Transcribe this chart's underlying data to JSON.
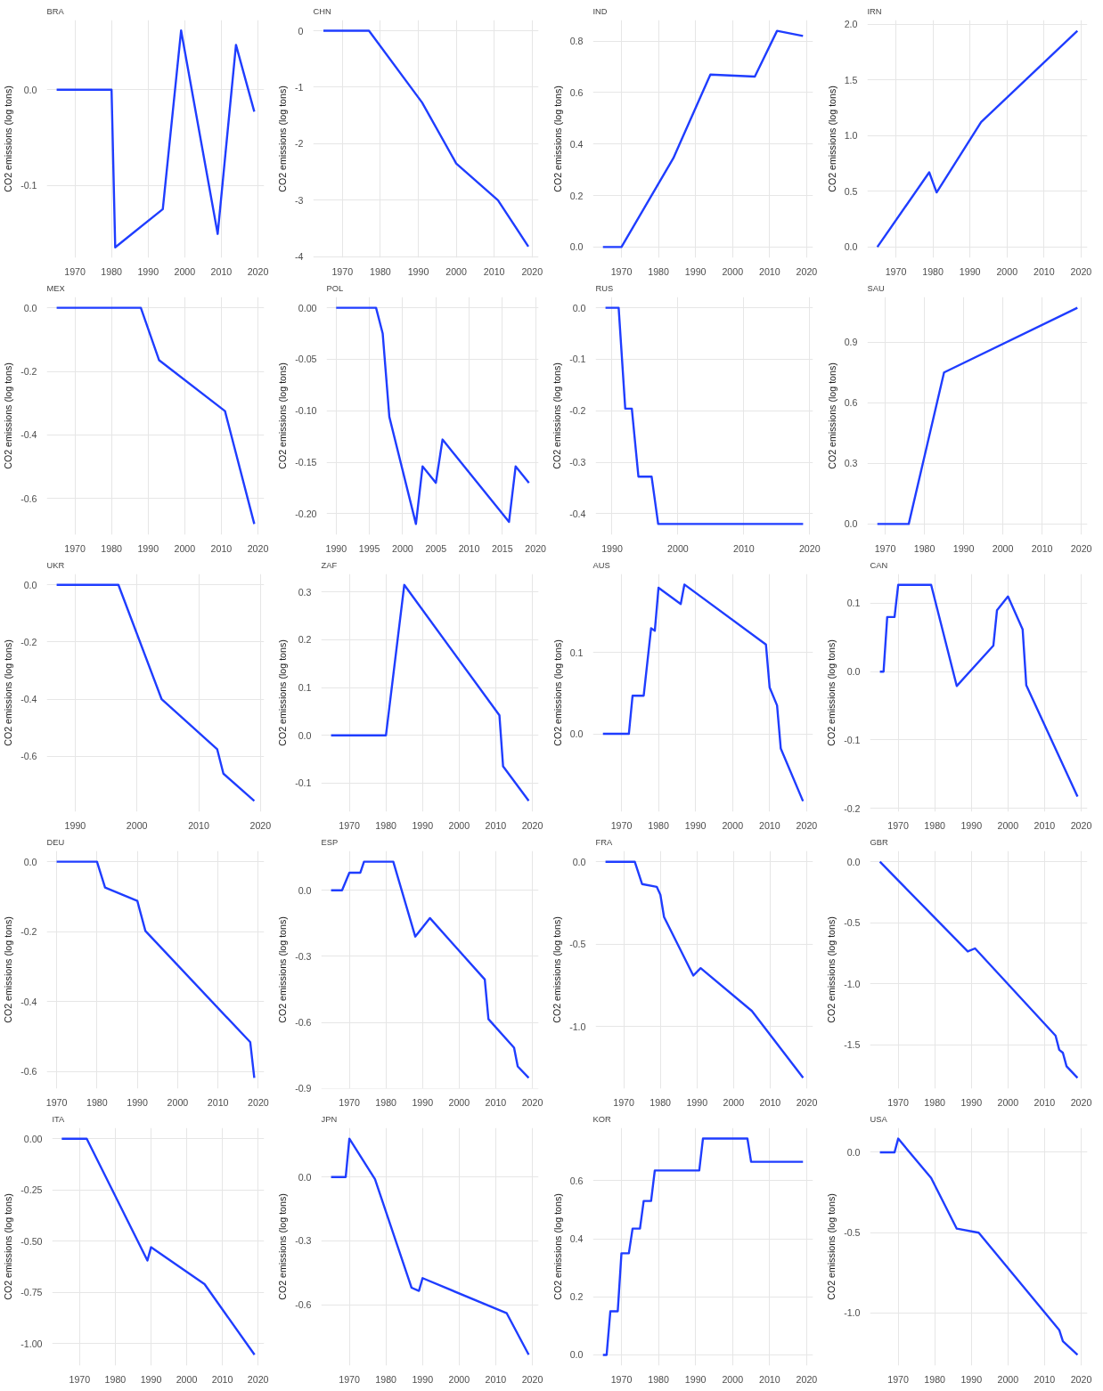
{
  "chart_data": [
    {
      "type": "line",
      "title": "BRA",
      "ylabel": "CO2 emissions (log tons)",
      "color": "#1f3dff",
      "grid": true,
      "x": [
        1965,
        1980,
        1981,
        1994,
        1999,
        2009,
        2014,
        2019
      ],
      "values": [
        0,
        0,
        -0.165,
        -0.125,
        0.062,
        -0.151,
        0.047,
        -0.023
      ],
      "xlim": [
        1962.3,
        2021.7
      ],
      "ylim": [
        -0.176,
        0.073
      ],
      "xticks": [
        1970,
        1980,
        1990,
        2000,
        2010,
        2020
      ],
      "yticks": [
        -0.1,
        {
          "value": 0,
          "label": "0.0"
        }
      ]
    },
    {
      "type": "line",
      "title": "CHN",
      "ylabel": "CO2 emissions (log tons)",
      "color": "#1f3dff",
      "grid": true,
      "x": [
        1965,
        1977,
        1991,
        2000,
        2011,
        2019
      ],
      "values": [
        0,
        0,
        -1.27,
        -2.35,
        -3.0,
        -3.82
      ],
      "xlim": [
        1962.3,
        2021.7
      ],
      "ylim": [
        -4.02,
        0.19
      ],
      "xticks": [
        1970,
        1980,
        1990,
        2000,
        2010,
        2020
      ],
      "yticks": [
        -4,
        -3,
        -2,
        -1,
        0
      ]
    },
    {
      "type": "line",
      "title": "IND",
      "ylabel": "CO2 emissions (log tons)",
      "color": "#1f3dff",
      "grid": true,
      "x": [
        1965,
        1970,
        1984,
        1994,
        2006,
        2012,
        2019
      ],
      "values": [
        0,
        0,
        0.345,
        0.67,
        0.662,
        0.84,
        0.82
      ],
      "xlim": [
        1962.3,
        2021.7
      ],
      "ylim": [
        -0.042,
        0.882
      ],
      "xticks": [
        1970,
        1980,
        1990,
        2000,
        2010,
        2020
      ],
      "yticks": [
        {
          "value": 0,
          "label": "0.0"
        },
        0.2,
        0.4,
        0.6,
        0.8
      ]
    },
    {
      "type": "line",
      "title": "IRN",
      "ylabel": "CO2 emissions (log tons)",
      "color": "#1f3dff",
      "grid": true,
      "x": [
        1965,
        1979,
        1981,
        1993,
        2019
      ],
      "values": [
        0,
        0.67,
        0.49,
        1.12,
        1.94
      ],
      "xlim": [
        1962.3,
        2021.7
      ],
      "ylim": [
        -0.097,
        2.037
      ],
      "xticks": [
        1970,
        1980,
        1990,
        2000,
        2010,
        2020
      ],
      "yticks": [
        {
          "value": 0,
          "label": "0.0"
        },
        0.5,
        {
          "value": 1,
          "label": "1.0"
        },
        1.5,
        {
          "value": 2,
          "label": "2.0"
        }
      ]
    },
    {
      "type": "line",
      "title": "MEX",
      "ylabel": "CO2 emissions (log tons)",
      "color": "#1f3dff",
      "grid": true,
      "x": [
        1965,
        1988,
        1993,
        2011,
        2019
      ],
      "values": [
        0,
        0,
        -0.165,
        -0.325,
        -0.68
      ],
      "xlim": [
        1962.3,
        2021.7
      ],
      "ylim": [
        -0.714,
        0.034
      ],
      "xticks": [
        1970,
        1980,
        1990,
        2000,
        2010,
        2020
      ],
      "yticks": [
        -0.6,
        -0.4,
        -0.2,
        {
          "value": 0,
          "label": "0.0"
        }
      ]
    },
    {
      "type": "line",
      "title": "POL",
      "ylabel": "CO2 emissions (log tons)",
      "color": "#1f3dff",
      "grid": true,
      "x": [
        1990,
        1996,
        1997,
        1998,
        2002,
        2003,
        2005,
        2006,
        2016,
        2017,
        2019
      ],
      "values": [
        0,
        0,
        -0.025,
        -0.106,
        -0.21,
        -0.154,
        -0.17,
        -0.128,
        -0.208,
        -0.154,
        -0.17
      ],
      "xlim": [
        1988.55,
        2020.45
      ],
      "ylim": [
        -0.2205,
        0.0105
      ],
      "xticks": [
        1990,
        1995,
        2000,
        2005,
        2010,
        2015,
        2020
      ],
      "yticks": [
        {
          "value": -0.2,
          "label": "-0.20"
        },
        -0.15,
        {
          "value": -0.1,
          "label": "-0.10"
        },
        -0.05,
        {
          "value": 0,
          "label": "0.00"
        }
      ]
    },
    {
      "type": "line",
      "title": "RUS",
      "ylabel": "CO2 emissions (log tons)",
      "color": "#1f3dff",
      "grid": true,
      "x": [
        1989,
        1991,
        1992,
        1993,
        1994,
        1996,
        1997,
        2019
      ],
      "values": [
        0,
        0,
        -0.196,
        -0.196,
        -0.328,
        -0.328,
        -0.42,
        -0.42
      ],
      "xlim": [
        1987.5,
        2020.5
      ],
      "ylim": [
        -0.441,
        0.021
      ],
      "xticks": [
        1990,
        2000,
        2010,
        2020
      ],
      "yticks": [
        -0.4,
        -0.3,
        -0.2,
        -0.1,
        {
          "value": 0,
          "label": "0.0"
        }
      ]
    },
    {
      "type": "line",
      "title": "SAU",
      "ylabel": "CO2 emissions (log tons)",
      "color": "#1f3dff",
      "grid": true,
      "x": [
        1968,
        1976,
        1985,
        2019
      ],
      "values": [
        0,
        0,
        0.75,
        1.07
      ],
      "xlim": [
        1965.45,
        2021.55
      ],
      "ylim": [
        -0.0535,
        1.1235
      ],
      "xticks": [
        1970,
        1980,
        1990,
        2000,
        2010,
        2020
      ],
      "yticks": [
        {
          "value": 0,
          "label": "0.0"
        },
        0.3,
        0.6,
        0.9
      ]
    },
    {
      "type": "line",
      "title": "UKR",
      "ylabel": "CO2 emissions (log tons)",
      "color": "#1f3dff",
      "grid": true,
      "x": [
        1987,
        1997,
        2004,
        2013,
        2014,
        2019
      ],
      "values": [
        0,
        0,
        -0.4,
        -0.575,
        -0.66,
        -0.755
      ],
      "xlim": [
        1985.4,
        2020.6
      ],
      "ylim": [
        -0.793,
        0.038
      ],
      "xticks": [
        1990,
        2000,
        2010,
        2020
      ],
      "yticks": [
        -0.6,
        -0.4,
        -0.2,
        {
          "value": 0,
          "label": "0.0"
        }
      ]
    },
    {
      "type": "line",
      "title": "ZAF",
      "ylabel": "CO2 emissions (log tons)",
      "color": "#1f3dff",
      "grid": true,
      "x": [
        1965,
        1980,
        1985,
        2011,
        2012,
        2019
      ],
      "values": [
        0,
        0,
        0.315,
        0.042,
        -0.065,
        -0.137
      ],
      "xlim": [
        1962.3,
        2021.7
      ],
      "ylim": [
        -0.16,
        0.338
      ],
      "xticks": [
        1970,
        1980,
        1990,
        2000,
        2010,
        2020
      ],
      "yticks": [
        -0.1,
        {
          "value": 0,
          "label": "0.0"
        },
        0.1,
        0.2,
        0.3
      ]
    },
    {
      "type": "line",
      "title": "AUS",
      "ylabel": "CO2 emissions (log tons)",
      "color": "#1f3dff",
      "grid": true,
      "x": [
        1965,
        1972,
        1973,
        1976,
        1978,
        1979,
        1980,
        1986,
        1987,
        2009,
        2010,
        2012,
        2013,
        2019
      ],
      "values": [
        0,
        0,
        0.047,
        0.047,
        0.13,
        0.127,
        0.18,
        0.16,
        0.184,
        0.11,
        0.057,
        0.035,
        -0.018,
        -0.083
      ],
      "xlim": [
        1962.3,
        2021.7
      ],
      "ylim": [
        -0.096,
        0.197
      ],
      "xticks": [
        1970,
        1980,
        1990,
        2000,
        2010,
        2020
      ],
      "yticks": [
        {
          "value": 0,
          "label": "0.0"
        },
        0.1
      ]
    },
    {
      "type": "line",
      "title": "CAN",
      "ylabel": "CO2 emissions (log tons)",
      "color": "#1f3dff",
      "grid": true,
      "x": [
        1965,
        1966,
        1967,
        1969,
        1970,
        1979,
        1986,
        1996,
        1997,
        2000,
        2004,
        2005,
        2019
      ],
      "values": [
        0,
        0,
        0.08,
        0.08,
        0.127,
        0.127,
        -0.021,
        0.038,
        0.09,
        0.11,
        0.062,
        -0.02,
        -0.183
      ],
      "xlim": [
        1962.3,
        2021.7
      ],
      "ylim": [
        -0.205,
        0.143
      ],
      "xticks": [
        1970,
        1980,
        1990,
        2000,
        2010,
        2020
      ],
      "yticks": [
        -0.2,
        -0.1,
        {
          "value": 0,
          "label": "0.0"
        },
        0.1
      ]
    },
    {
      "type": "line",
      "title": "DEU",
      "ylabel": "CO2 emissions (log tons)",
      "color": "#1f3dff",
      "grid": true,
      "x": [
        1970,
        1980,
        1982,
        1990,
        1992,
        2018,
        2019
      ],
      "values": [
        0,
        0,
        -0.074,
        -0.112,
        -0.198,
        -0.516,
        -0.618
      ],
      "xlim": [
        1967.55,
        2021.45
      ],
      "ylim": [
        -0.649,
        0.031
      ],
      "xticks": [
        1970,
        1980,
        1990,
        2000,
        2010,
        2020
      ],
      "yticks": [
        -0.6,
        -0.4,
        -0.2,
        {
          "value": 0,
          "label": "0.0"
        }
      ]
    },
    {
      "type": "line",
      "title": "ESP",
      "ylabel": "CO2 emissions (log tons)",
      "color": "#1f3dff",
      "grid": true,
      "x": [
        1965,
        1968,
        1970,
        1973,
        1974,
        1982,
        1988,
        1992,
        2007,
        2008,
        2015,
        2016,
        2019
      ],
      "values": [
        0,
        0,
        0.08,
        0.08,
        0.13,
        0.13,
        -0.21,
        -0.126,
        -0.405,
        -0.585,
        -0.715,
        -0.8,
        -0.852
      ],
      "xlim": [
        1962.3,
        2021.7
      ],
      "ylim": [
        -0.901,
        0.179
      ],
      "xticks": [
        1970,
        1980,
        1990,
        2000,
        2010,
        2020
      ],
      "yticks": [
        -0.9,
        -0.6,
        -0.3,
        {
          "value": 0,
          "label": "0.0"
        }
      ]
    },
    {
      "type": "line",
      "title": "FRA",
      "ylabel": "CO2 emissions (log tons)",
      "color": "#1f3dff",
      "grid": true,
      "x": [
        1965,
        1973,
        1975,
        1979,
        1980,
        1981,
        1989,
        1991,
        2005,
        2019
      ],
      "values": [
        0,
        0,
        -0.135,
        -0.152,
        -0.2,
        -0.335,
        -0.69,
        -0.645,
        -0.905,
        -1.31
      ],
      "xlim": [
        1962.3,
        2021.7
      ],
      "ylim": [
        -1.376,
        0.066
      ],
      "xticks": [
        1970,
        1980,
        1990,
        2000,
        2010,
        2020
      ],
      "yticks": [
        {
          "value": -1,
          "label": "-1.0"
        },
        -0.5,
        {
          "value": 0,
          "label": "0.0"
        }
      ]
    },
    {
      "type": "line",
      "title": "GBR",
      "ylabel": "CO2 emissions (log tons)",
      "color": "#1f3dff",
      "grid": true,
      "x": [
        1965,
        1989,
        1991,
        2013,
        2014,
        2015,
        2016,
        2019
      ],
      "values": [
        0,
        -0.735,
        -0.71,
        -1.425,
        -1.54,
        -1.565,
        -1.675,
        -1.77
      ],
      "xlim": [
        1962.3,
        2021.7
      ],
      "ylim": [
        -1.8585,
        0.0885
      ],
      "xticks": [
        1970,
        1980,
        1990,
        2000,
        2010,
        2020
      ],
      "yticks": [
        -1.5,
        {
          "value": -1,
          "label": "-1.0"
        },
        -0.5,
        {
          "value": 0,
          "label": "0.0"
        }
      ]
    },
    {
      "type": "line",
      "title": "ITA",
      "ylabel": "CO2 emissions (log tons)",
      "color": "#1f3dff",
      "grid": true,
      "x": [
        1965,
        1972,
        1989,
        1990,
        2005,
        2019
      ],
      "values": [
        0,
        0,
        -0.595,
        -0.53,
        -0.71,
        -1.055
      ],
      "xlim": [
        1962.3,
        2021.7
      ],
      "ylim": [
        -1.108,
        0.053
      ],
      "xticks": [
        1970,
        1980,
        1990,
        2000,
        2010,
        2020
      ],
      "yticks": [
        {
          "value": -1,
          "label": "-1.00"
        },
        -0.75,
        {
          "value": -0.5,
          "label": "-0.50"
        },
        -0.25,
        {
          "value": 0,
          "label": "0.00"
        }
      ]
    },
    {
      "type": "line",
      "title": "JPN",
      "ylabel": "CO2 emissions (log tons)",
      "color": "#1f3dff",
      "grid": true,
      "x": [
        1965,
        1969,
        1970,
        1977,
        1987,
        1989,
        1990,
        2013,
        2019
      ],
      "values": [
        0,
        0,
        0.18,
        -0.01,
        -0.52,
        -0.535,
        -0.475,
        -0.64,
        -0.835
      ],
      "xlim": [
        1962.3,
        2021.7
      ],
      "ylim": [
        -0.886,
        0.231
      ],
      "xticks": [
        1970,
        1980,
        1990,
        2000,
        2010,
        2020
      ],
      "yticks": [
        -0.6,
        -0.3,
        {
          "value": 0,
          "label": "0.0"
        }
      ]
    },
    {
      "type": "line",
      "title": "KOR",
      "ylabel": "CO2 emissions (log tons)",
      "color": "#1f3dff",
      "grid": true,
      "x": [
        1965,
        1966,
        1967,
        1969,
        1970,
        1972,
        1973,
        1975,
        1976,
        1978,
        1979,
        1991,
        1992,
        2004,
        2005,
        2019
      ],
      "values": [
        0,
        0,
        0.15,
        0.15,
        0.35,
        0.35,
        0.435,
        0.435,
        0.53,
        0.53,
        0.635,
        0.635,
        0.745,
        0.745,
        0.665,
        0.665
      ],
      "xlim": [
        1962.3,
        2021.7
      ],
      "ylim": [
        -0.037,
        0.782
      ],
      "xticks": [
        1970,
        1980,
        1990,
        2000,
        2010,
        2020
      ],
      "yticks": [
        {
          "value": 0,
          "label": "0.0"
        },
        0.2,
        0.4,
        0.6
      ]
    },
    {
      "type": "line",
      "title": "USA",
      "ylabel": "CO2 emissions (log tons)",
      "color": "#1f3dff",
      "grid": true,
      "x": [
        1965,
        1969,
        1970,
        1979,
        1986,
        1992,
        2014,
        2015,
        2019
      ],
      "values": [
        0,
        0,
        0.085,
        -0.16,
        -0.475,
        -0.5,
        -1.105,
        -1.175,
        -1.26
      ],
      "xlim": [
        1962.3,
        2021.7
      ],
      "ylim": [
        -1.327,
        0.152
      ],
      "xticks": [
        1970,
        1980,
        1990,
        2000,
        2010,
        2020
      ],
      "yticks": [
        {
          "value": -1,
          "label": "-1.0"
        },
        -0.5,
        {
          "value": 0,
          "label": "0.0"
        }
      ]
    }
  ]
}
